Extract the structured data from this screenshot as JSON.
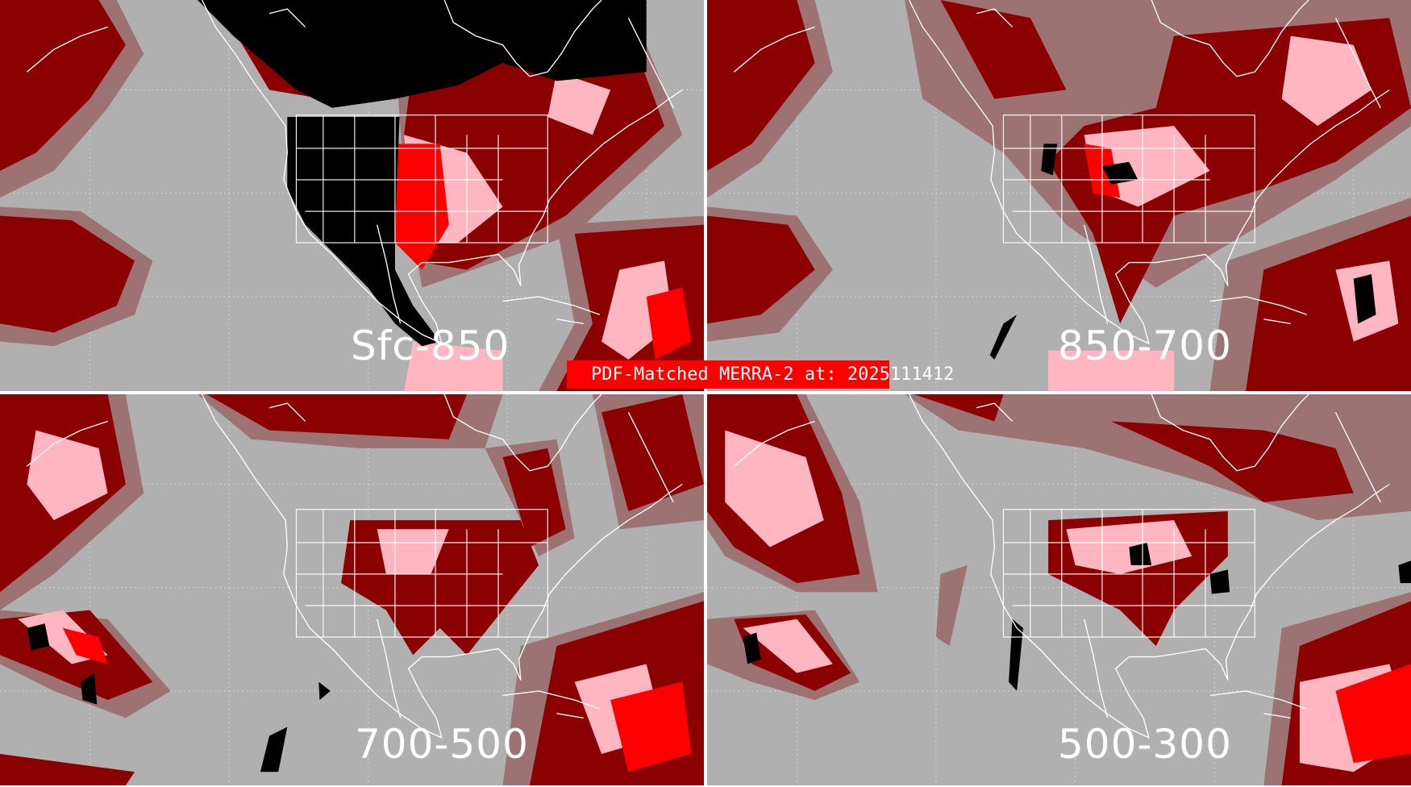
{
  "title": "PDF-Matched MERRA-2 at: 2025111412",
  "panels": [
    {
      "label": "Sfc-850"
    },
    {
      "label": "850-700"
    },
    {
      "label": "700-500"
    },
    {
      "label": "500-300"
    }
  ],
  "colors": {
    "background": "#b0b0b0",
    "dark_red": "#8b0000",
    "muted_red": "#9c7272",
    "pink": "#ffb6c1",
    "red": "#ff0000",
    "black": "#000000",
    "lines": "#ffffff",
    "title_bar": "#ff0000"
  }
}
